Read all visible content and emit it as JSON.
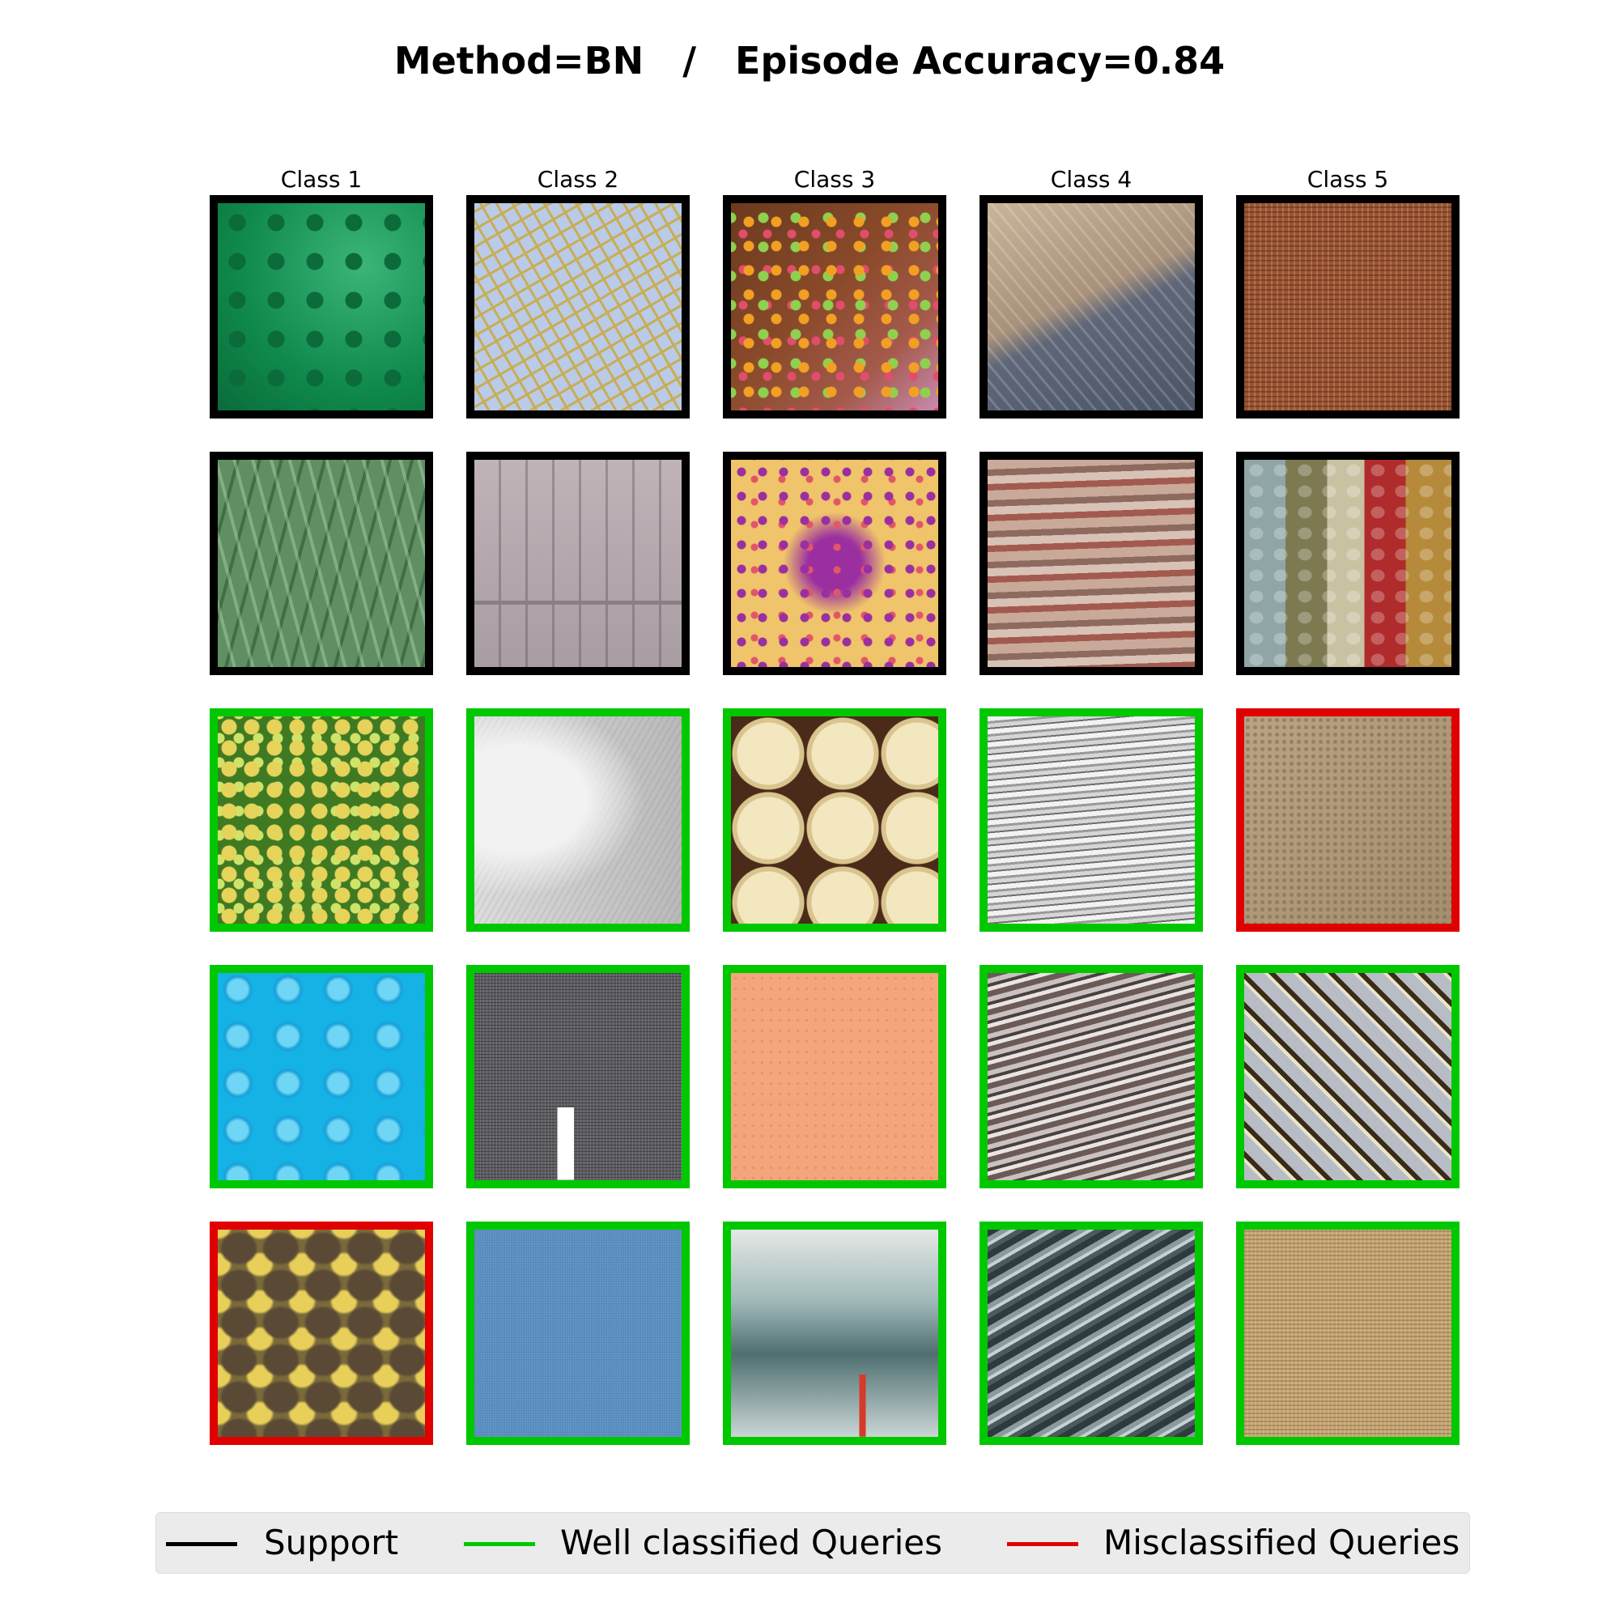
{
  "title": "Method=BN   /   Episode Accuracy=0.84",
  "colors": {
    "support": "#000000",
    "well": "#00c800",
    "mis": "#e00000"
  },
  "columns": [
    "Class 1",
    "Class 2",
    "Class 3",
    "Class 4",
    "Class 5"
  ],
  "rows": [
    [
      "support",
      "support",
      "support",
      "support",
      "support"
    ],
    [
      "support",
      "support",
      "support",
      "support",
      "support"
    ],
    [
      "well",
      "well",
      "well",
      "well",
      "mis"
    ],
    [
      "well",
      "well",
      "well",
      "well",
      "well"
    ],
    [
      "mis",
      "well",
      "well",
      "well",
      "well"
    ]
  ],
  "legend": {
    "support": "Support",
    "well": "Well classified Queries",
    "mis": "Misclassified Queries"
  }
}
